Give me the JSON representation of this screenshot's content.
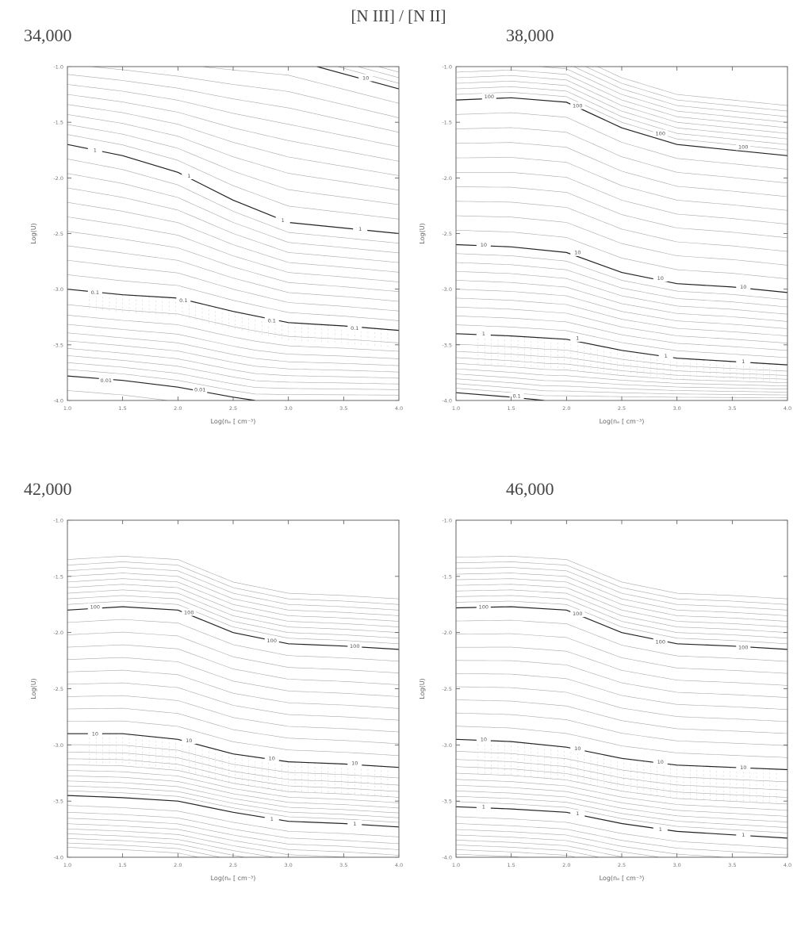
{
  "header": {
    "title": "[N III]  / [N II]"
  },
  "chart_data": [
    {
      "type": "contour",
      "title": "34,000",
      "xlabel": "Log(nₑ [ cm⁻³)",
      "ylabel": "Log(U)",
      "xlim": [
        1.0,
        4.0
      ],
      "ylim": [
        -4.0,
        -1.0
      ],
      "xticks": [
        "1.0",
        "1.5",
        "2.0",
        "2.5",
        "3.0",
        "3.5",
        "4.0"
      ],
      "yticks": [
        "-1.0",
        "-1.5",
        "-2.0",
        "-2.5",
        "-3.0",
        "-3.5",
        "-4.0"
      ],
      "labeled_contours": [
        {
          "label": "10",
          "points": [
            [
              1.0,
              -0.8
            ],
            [
              2.0,
              -0.87
            ],
            [
              3.0,
              -0.93
            ],
            [
              4.0,
              -1.2
            ]
          ],
          "label_at": [
            [
              3.7,
              -1.1
            ]
          ]
        },
        {
          "label": "1",
          "points": [
            [
              1.0,
              -1.7
            ],
            [
              1.5,
              -1.8
            ],
            [
              2.0,
              -1.95
            ],
            [
              2.5,
              -2.2
            ],
            [
              3.0,
              -2.4
            ],
            [
              3.5,
              -2.45
            ],
            [
              4.0,
              -2.5
            ]
          ],
          "label_at": [
            [
              1.25,
              -1.75
            ],
            [
              2.1,
              -1.98
            ],
            [
              2.95,
              -2.38
            ],
            [
              3.65,
              -2.46
            ]
          ]
        },
        {
          "label": "0.1",
          "points": [
            [
              1.0,
              -3.0
            ],
            [
              1.5,
              -3.05
            ],
            [
              2.0,
              -3.08
            ],
            [
              2.5,
              -3.2
            ],
            [
              3.0,
              -3.3
            ],
            [
              3.5,
              -3.33
            ],
            [
              4.0,
              -3.37
            ]
          ],
          "label_at": [
            [
              1.25,
              -3.03
            ],
            [
              2.05,
              -3.1
            ],
            [
              2.85,
              -3.28
            ],
            [
              3.6,
              -3.35
            ]
          ]
        },
        {
          "label": "0.01",
          "points": [
            [
              1.0,
              -3.78
            ],
            [
              1.5,
              -3.82
            ],
            [
              2.0,
              -3.88
            ],
            [
              2.5,
              -3.97
            ],
            [
              2.7,
              -4.0
            ]
          ],
          "label_at": [
            [
              1.35,
              -3.82
            ],
            [
              2.2,
              -3.9
            ]
          ]
        }
      ]
    },
    {
      "type": "contour",
      "title": "38,000",
      "xlabel": "Log(nₑ [ cm⁻³)",
      "ylabel": "Log(U)",
      "xlim": [
        1.0,
        4.0
      ],
      "ylim": [
        -4.0,
        -1.0
      ],
      "xticks": [
        "1.0",
        "1.5",
        "2.0",
        "2.5",
        "3.0",
        "3.5",
        "4.0"
      ],
      "yticks": [
        "-1.0",
        "-1.5",
        "-2.0",
        "-2.5",
        "-3.0",
        "-3.5",
        "-4.0"
      ],
      "labeled_contours": [
        {
          "label": "100",
          "points": [
            [
              1.0,
              -1.3
            ],
            [
              1.5,
              -1.28
            ],
            [
              2.0,
              -1.32
            ],
            [
              2.5,
              -1.55
            ],
            [
              3.0,
              -1.7
            ],
            [
              3.5,
              -1.75
            ],
            [
              4.0,
              -1.8
            ]
          ],
          "label_at": [
            [
              1.3,
              -1.27
            ],
            [
              2.1,
              -1.35
            ],
            [
              2.85,
              -1.6
            ],
            [
              3.6,
              -1.72
            ]
          ]
        },
        {
          "label": "10",
          "points": [
            [
              1.0,
              -2.6
            ],
            [
              1.5,
              -2.62
            ],
            [
              2.0,
              -2.67
            ],
            [
              2.5,
              -2.85
            ],
            [
              3.0,
              -2.95
            ],
            [
              3.5,
              -2.98
            ],
            [
              4.0,
              -3.03
            ]
          ],
          "label_at": [
            [
              1.25,
              -2.6
            ],
            [
              2.1,
              -2.67
            ],
            [
              2.85,
              -2.9
            ],
            [
              3.6,
              -2.98
            ]
          ]
        },
        {
          "label": "1",
          "points": [
            [
              1.0,
              -3.4
            ],
            [
              1.5,
              -3.42
            ],
            [
              2.0,
              -3.45
            ],
            [
              2.5,
              -3.55
            ],
            [
              3.0,
              -3.62
            ],
            [
              3.5,
              -3.65
            ],
            [
              4.0,
              -3.68
            ]
          ],
          "label_at": [
            [
              1.25,
              -3.4
            ],
            [
              2.1,
              -3.44
            ],
            [
              2.9,
              -3.6
            ],
            [
              3.6,
              -3.65
            ]
          ]
        },
        {
          "label": "0.1",
          "points": [
            [
              1.0,
              -3.93
            ],
            [
              1.5,
              -3.97
            ],
            [
              1.8,
              -4.0
            ]
          ],
          "label_at": [
            [
              1.55,
              -3.96
            ]
          ]
        }
      ]
    },
    {
      "type": "contour",
      "title": "42,000",
      "xlabel": "Log(nₑ [ cm⁻³)",
      "ylabel": "Log(U)",
      "xlim": [
        1.0,
        4.0
      ],
      "ylim": [
        -4.0,
        -1.0
      ],
      "xticks": [
        "1.0",
        "1.5",
        "2.0",
        "2.5",
        "3.0",
        "3.5",
        "4.0"
      ],
      "yticks": [
        "-1.0",
        "-1.5",
        "-2.0",
        "-2.5",
        "-3.0",
        "-3.5",
        "-4.0"
      ],
      "labeled_contours": [
        {
          "label": "100",
          "points": [
            [
              1.0,
              -1.8
            ],
            [
              1.5,
              -1.77
            ],
            [
              2.0,
              -1.8
            ],
            [
              2.5,
              -2.0
            ],
            [
              3.0,
              -2.1
            ],
            [
              3.5,
              -2.12
            ],
            [
              4.0,
              -2.15
            ]
          ],
          "label_at": [
            [
              1.25,
              -1.77
            ],
            [
              2.1,
              -1.82
            ],
            [
              2.85,
              -2.07
            ],
            [
              3.6,
              -2.12
            ]
          ]
        },
        {
          "label": "10",
          "points": [
            [
              1.0,
              -2.9
            ],
            [
              1.5,
              -2.9
            ],
            [
              2.0,
              -2.95
            ],
            [
              2.5,
              -3.08
            ],
            [
              3.0,
              -3.15
            ],
            [
              3.5,
              -3.17
            ],
            [
              4.0,
              -3.2
            ]
          ],
          "label_at": [
            [
              1.25,
              -2.9
            ],
            [
              2.1,
              -2.96
            ],
            [
              2.85,
              -3.12
            ],
            [
              3.6,
              -3.16
            ]
          ]
        },
        {
          "label": "1",
          "points": [
            [
              1.0,
              -3.45
            ],
            [
              1.5,
              -3.47
            ],
            [
              2.0,
              -3.5
            ],
            [
              2.5,
              -3.6
            ],
            [
              3.0,
              -3.68
            ],
            [
              3.5,
              -3.7
            ],
            [
              4.0,
              -3.73
            ]
          ],
          "label_at": [
            [
              2.85,
              -3.66
            ],
            [
              3.6,
              -3.7
            ]
          ]
        }
      ]
    },
    {
      "type": "contour",
      "title": "46,000",
      "xlabel": "Log(nₑ [ cm⁻³)",
      "ylabel": "Log(U)",
      "xlim": [
        1.0,
        4.0
      ],
      "ylim": [
        -4.0,
        -1.0
      ],
      "xticks": [
        "1.0",
        "1.5",
        "2.0",
        "2.5",
        "3.0",
        "3.5",
        "4.0"
      ],
      "yticks": [
        "-1.0",
        "-1.5",
        "-2.0",
        "-2.5",
        "-3.0",
        "-3.5",
        "-4.0"
      ],
      "labeled_contours": [
        {
          "label": "100",
          "points": [
            [
              1.0,
              -1.78
            ],
            [
              1.5,
              -1.77
            ],
            [
              2.0,
              -1.8
            ],
            [
              2.5,
              -2.0
            ],
            [
              3.0,
              -2.1
            ],
            [
              3.5,
              -2.12
            ],
            [
              4.0,
              -2.15
            ]
          ],
          "label_at": [
            [
              1.25,
              -1.77
            ],
            [
              2.1,
              -1.83
            ],
            [
              2.85,
              -2.08
            ],
            [
              3.6,
              -2.13
            ]
          ]
        },
        {
          "label": "10",
          "points": [
            [
              1.0,
              -2.95
            ],
            [
              1.5,
              -2.97
            ],
            [
              2.0,
              -3.02
            ],
            [
              2.5,
              -3.12
            ],
            [
              3.0,
              -3.18
            ],
            [
              3.5,
              -3.2
            ],
            [
              4.0,
              -3.22
            ]
          ],
          "label_at": [
            [
              1.25,
              -2.95
            ],
            [
              2.1,
              -3.03
            ],
            [
              2.85,
              -3.15
            ],
            [
              3.6,
              -3.2
            ]
          ]
        },
        {
          "label": "1",
          "points": [
            [
              1.0,
              -3.55
            ],
            [
              1.5,
              -3.57
            ],
            [
              2.0,
              -3.6
            ],
            [
              2.5,
              -3.7
            ],
            [
              3.0,
              -3.77
            ],
            [
              3.5,
              -3.8
            ],
            [
              4.0,
              -3.83
            ]
          ],
          "label_at": [
            [
              1.25,
              -3.55
            ],
            [
              2.1,
              -3.61
            ],
            [
              2.85,
              -3.75
            ],
            [
              3.6,
              -3.8
            ]
          ]
        }
      ]
    }
  ]
}
